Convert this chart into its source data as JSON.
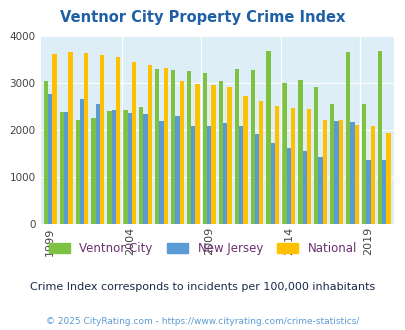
{
  "title": "Ventnor City Property Crime Index",
  "subtitle": "Crime Index corresponds to incidents per 100,000 inhabitants",
  "footer": "© 2025 CityRating.com - https://www.cityrating.com/crime-statistics/",
  "years": [
    1999,
    2000,
    2001,
    2002,
    2003,
    2004,
    2005,
    2006,
    2007,
    2008,
    2009,
    2010,
    2011,
    2012,
    2013,
    2014,
    2015,
    2016,
    2017,
    2018,
    2019,
    2020
  ],
  "ventnor": [
    3050,
    2380,
    2230,
    2270,
    2420,
    2440,
    2500,
    3300,
    3280,
    3260,
    3210,
    3040,
    3300,
    3290,
    3680,
    3010,
    3070,
    2930,
    2560,
    3660,
    2570,
    3680
  ],
  "nj": [
    2770,
    2380,
    2660,
    2560,
    2440,
    2360,
    2340,
    2200,
    2300,
    2100,
    2090,
    2160,
    2090,
    1920,
    1740,
    1630,
    1560,
    1430,
    2200,
    2170,
    1360,
    1360
  ],
  "national": [
    3620,
    3670,
    3650,
    3610,
    3550,
    3460,
    3400,
    3320,
    3040,
    2980,
    2960,
    2920,
    2730,
    2630,
    2510,
    2480,
    2460,
    2230,
    2210,
    2110,
    2100,
    1950
  ],
  "ventnor_color": "#7dc242",
  "nj_color": "#5b9bd5",
  "national_color": "#ffc000",
  "bg_color": "#ddeef6",
  "title_color": "#1f5fa6",
  "subtitle_color": "#1a2a4a",
  "legend_text_color": "#6b3070",
  "footer_color": "#5b9bd5",
  "ylim": [
    0,
    4000
  ],
  "yticks": [
    0,
    1000,
    2000,
    3000,
    4000
  ],
  "xtick_years": [
    1999,
    2004,
    2009,
    2014,
    2019
  ]
}
